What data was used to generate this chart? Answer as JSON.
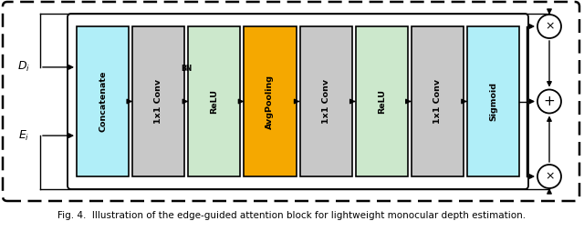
{
  "fig_width": 6.4,
  "fig_height": 2.54,
  "dpi": 100,
  "blocks": [
    {
      "label": "Concatenate",
      "facecolor": "#b0eef8",
      "edgecolor": "#000000"
    },
    {
      "label": "1x1 Conv",
      "facecolor": "#c8c8c8",
      "edgecolor": "#000000"
    },
    {
      "label": "ReLU",
      "facecolor": "#cce8cc",
      "edgecolor": "#000000"
    },
    {
      "label": "AvgPooling",
      "facecolor": "#f5a800",
      "edgecolor": "#000000"
    },
    {
      "label": "1x1 Conv",
      "facecolor": "#c8c8c8",
      "edgecolor": "#000000"
    },
    {
      "label": "ReLU",
      "facecolor": "#cce8cc",
      "edgecolor": "#000000"
    },
    {
      "label": "1x1 Conv",
      "facecolor": "#c8c8c8",
      "edgecolor": "#000000"
    },
    {
      "label": "Sigmoid",
      "facecolor": "#b0eef8",
      "edgecolor": "#000000"
    }
  ],
  "caption": "Fig. 4.  Illustration of the edge-guided attention block for lightweight monocular depth estimation."
}
